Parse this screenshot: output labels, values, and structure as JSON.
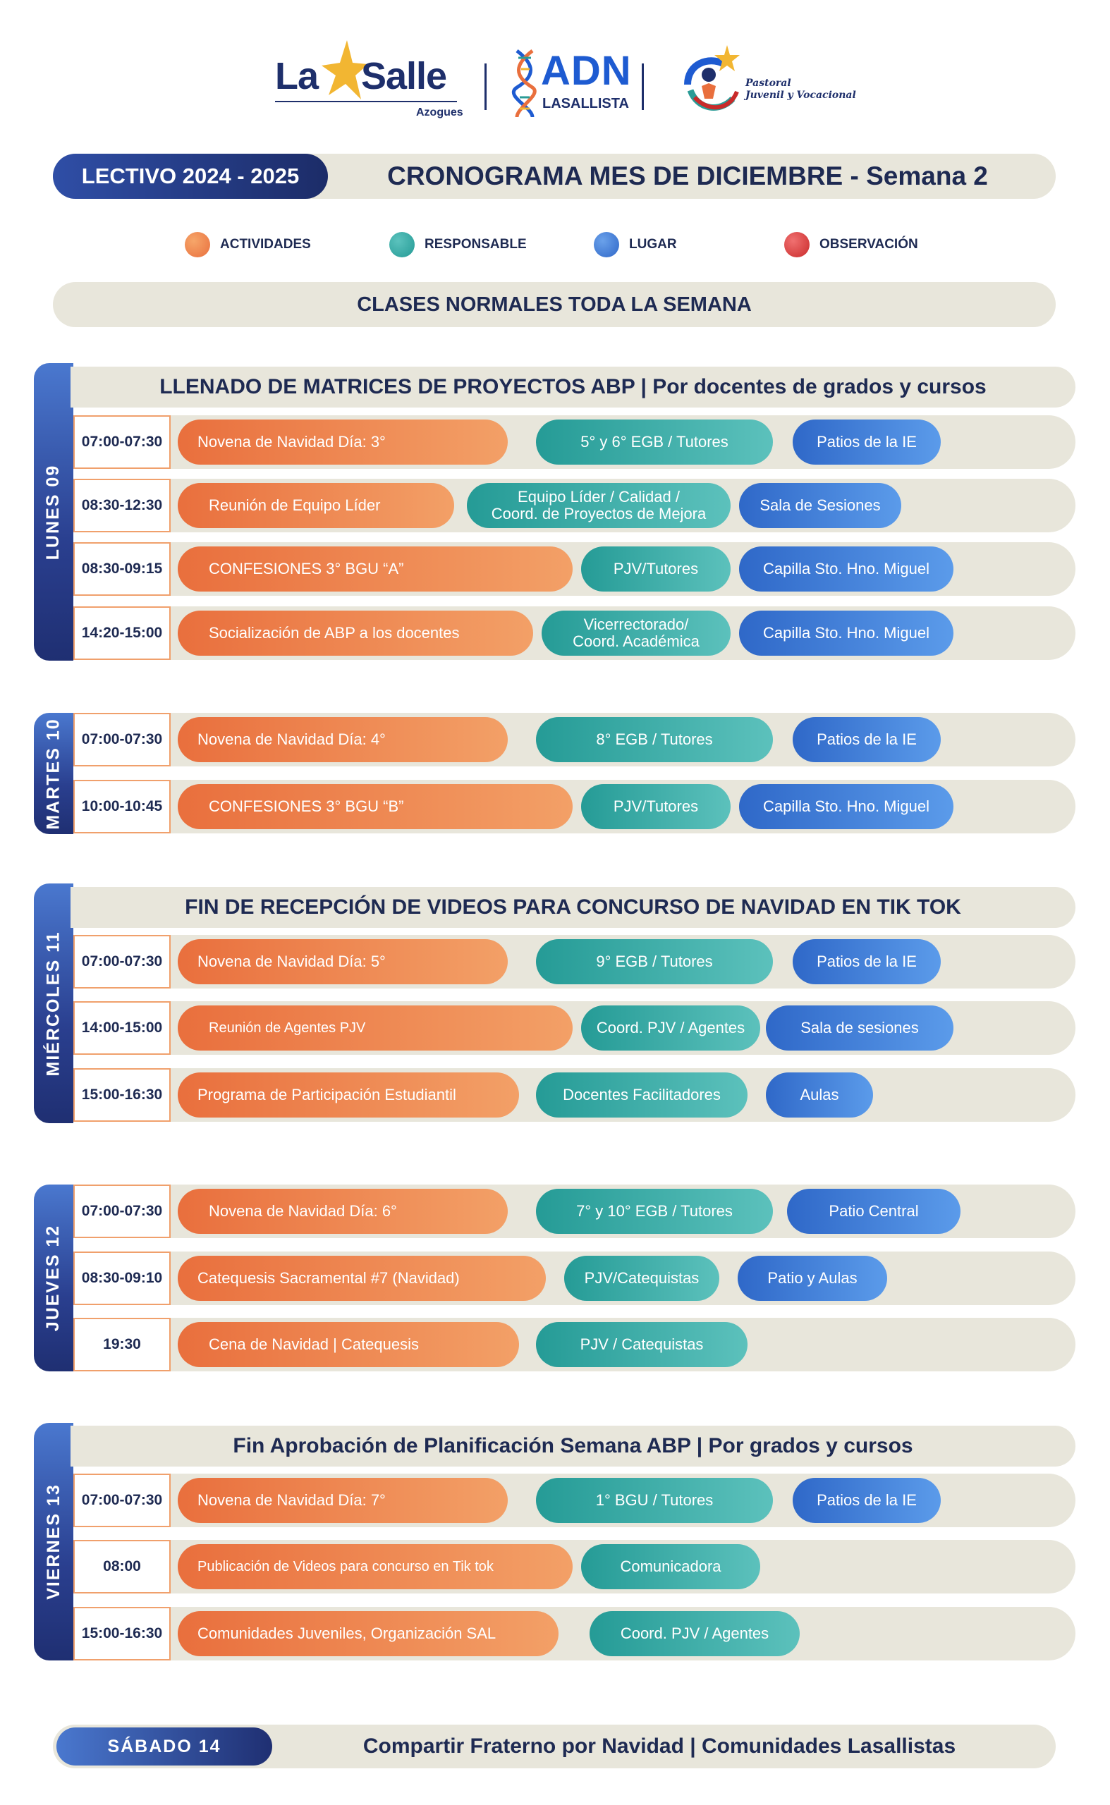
{
  "logos": {
    "lasalle": {
      "word1": "La",
      "word2": "Salle",
      "sub": "Azogues"
    },
    "adn": {
      "big": "ADN",
      "small": "LASALLISTA"
    },
    "pastoral": {
      "line1": "Pastoral",
      "line2": "Juvenil y Vocacional"
    }
  },
  "header": {
    "year": "LECTIVO 2024 - 2025",
    "title": "CRONOGRAMA MES DE DICIEMBRE - Semana 2"
  },
  "legend": [
    {
      "label": "ACTIVIDADES",
      "color": "#ee8350"
    },
    {
      "label": "RESPONSABLE",
      "color": "#35aba6"
    },
    {
      "label": "LUGAR",
      "color": "#3f7fd8"
    },
    {
      "label": "OBSERVACIÓN",
      "color": "#d93a3a"
    }
  ],
  "notice": "CLASES NORMALES TODA LA SEMANA",
  "days": {
    "lunes": {
      "label": "LUNES 09",
      "header": "LLENADO DE MATRICES DE PROYECTOS ABP | Por docentes de grados y cursos",
      "rows": [
        {
          "time": "07:00-07:30",
          "activity": "Novena de Navidad Día: 3°",
          "responsible": "5° y 6° EGB / Tutores",
          "place": "Patios de la IE"
        },
        {
          "time": "08:30-12:30",
          "activity": "Reunión de Equipo Líder",
          "responsible_1": "Equipo Líder / Calidad /",
          "responsible_2": "Coord. de Proyectos de Mejora",
          "place": "Sala de Sesiones"
        },
        {
          "time": "08:30-09:15",
          "activity": "CONFESIONES 3° BGU “A”",
          "responsible": "PJV/Tutores",
          "place": "Capilla Sto. Hno. Miguel"
        },
        {
          "time": "14:20-15:00",
          "activity": "Socialización de ABP a los docentes",
          "responsible_1": "Vicerrectorado/",
          "responsible_2": "Coord. Académica",
          "place": "Capilla Sto. Hno. Miguel"
        }
      ]
    },
    "martes": {
      "label": "MARTES 10",
      "rows": [
        {
          "time": "07:00-07:30",
          "activity": "Novena de Navidad Día: 4°",
          "responsible": "8° EGB / Tutores",
          "place": "Patios de la IE"
        },
        {
          "time": "10:00-10:45",
          "activity": "CONFESIONES 3° BGU “B”",
          "responsible": "PJV/Tutores",
          "place": "Capilla Sto. Hno. Miguel"
        }
      ]
    },
    "miercoles": {
      "label": "MIÉRCOLES 11",
      "header": "FIN DE RECEPCIÓN DE VIDEOS PARA CONCURSO DE NAVIDAD EN TIK TOK",
      "rows": [
        {
          "time": "07:00-07:30",
          "activity": "Novena de Navidad Día: 5°",
          "responsible": "9° EGB / Tutores",
          "place": "Patios de la IE"
        },
        {
          "time": "14:00-15:00",
          "activity": "Reunión de Agentes PJV",
          "responsible": "Coord. PJV / Agentes",
          "place": "Sala de sesiones"
        },
        {
          "time": "15:00-16:30",
          "activity": "Programa de Participación Estudiantil",
          "responsible": "Docentes Facilitadores",
          "place": "Aulas"
        }
      ]
    },
    "jueves": {
      "label": "JUEVES 12",
      "rows": [
        {
          "time": "07:00-07:30",
          "activity": "Novena de Navidad Día: 6°",
          "responsible": "7° y 10° EGB / Tutores",
          "place": "Patio Central"
        },
        {
          "time": "08:30-09:10",
          "activity": "Catequesis Sacramental #7 (Navidad)",
          "responsible": "PJV/Catequistas",
          "place": "Patio y Aulas"
        },
        {
          "time": "19:30",
          "activity": "Cena de Navidad | Catequesis",
          "responsible": "PJV / Catequistas"
        }
      ]
    },
    "viernes": {
      "label": "VIERNES 13",
      "header": "Fin Aprobación de Planificación Semana ABP | Por grados y cursos",
      "rows": [
        {
          "time": "07:00-07:30",
          "activity": "Novena de Navidad Día: 7°",
          "responsible": "1° BGU / Tutores",
          "place": "Patios de la IE"
        },
        {
          "time": "08:00",
          "activity": "Publicación de Videos para concurso en Tik tok",
          "responsible": "Comunicadora"
        },
        {
          "time": "15:00-16:30",
          "activity": "Comunidades Juveniles, Organización SAL",
          "responsible": "Coord. PJV / Agentes"
        }
      ]
    },
    "sabado": {
      "label": "SÁBADO 14",
      "text": "Compartir Fraterno por Navidad | Comunidades Lasallistas"
    }
  }
}
